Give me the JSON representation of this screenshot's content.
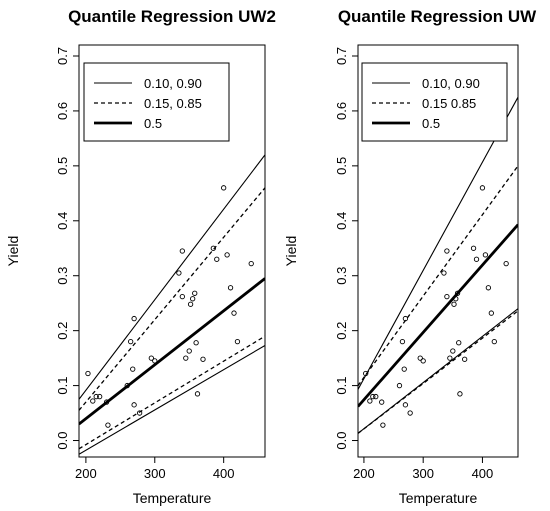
{
  "chart_data": [
    {
      "type": "scatter",
      "title": "Quantile Regression UW2",
      "xlabel": "Temperature",
      "ylabel": "Yield",
      "xlim": [
        190,
        460
      ],
      "ylim": [
        -0.03,
        0.72
      ],
      "xticks": [
        200,
        300,
        400
      ],
      "yticks": [
        0.0,
        0.1,
        0.2,
        0.3,
        0.4,
        0.5,
        0.6,
        0.7
      ],
      "legend_position": "top-left",
      "points": [
        [
          203,
          0.122
        ],
        [
          210,
          0.072
        ],
        [
          215,
          0.08
        ],
        [
          220,
          0.08
        ],
        [
          230,
          0.07
        ],
        [
          232,
          0.028
        ],
        [
          260,
          0.1
        ],
        [
          265,
          0.18
        ],
        [
          270,
          0.222
        ],
        [
          268,
          0.13
        ],
        [
          270,
          0.065
        ],
        [
          278,
          0.05
        ],
        [
          295,
          0.15
        ],
        [
          300,
          0.145
        ],
        [
          335,
          0.305
        ],
        [
          340,
          0.345
        ],
        [
          340,
          0.262
        ],
        [
          345,
          0.15
        ],
        [
          350,
          0.163
        ],
        [
          352,
          0.248
        ],
        [
          355,
          0.258
        ],
        [
          358,
          0.268
        ],
        [
          360,
          0.178
        ],
        [
          362,
          0.085
        ],
        [
          370,
          0.148
        ],
        [
          385,
          0.35
        ],
        [
          390,
          0.33
        ],
        [
          400,
          0.46
        ],
        [
          405,
          0.338
        ],
        [
          410,
          0.278
        ],
        [
          415,
          0.232
        ],
        [
          420,
          0.18
        ],
        [
          440,
          0.322
        ]
      ],
      "series": [
        {
          "name": "0.10, 0.90",
          "style": "thin-solid",
          "lines": [
            {
              "x": [
                190,
                460
              ],
              "y": [
                0.075,
                0.52
              ]
            },
            {
              "x": [
                190,
                460
              ],
              "y": [
                -0.025,
                0.173
              ]
            }
          ]
        },
        {
          "name": "0.15, 0.85",
          "style": "dashed",
          "lines": [
            {
              "x": [
                190,
                460
              ],
              "y": [
                0.055,
                0.46
              ]
            },
            {
              "x": [
                190,
                460
              ],
              "y": [
                -0.015,
                0.19
              ]
            }
          ]
        },
        {
          "name": "0.5",
          "style": "thick-solid",
          "lines": [
            {
              "x": [
                190,
                460
              ],
              "y": [
                0.03,
                0.295
              ]
            }
          ]
        }
      ]
    },
    {
      "type": "scatter",
      "title": "Quantile Regression UW",
      "xlabel": "Temperature",
      "ylabel": "Yield",
      "xlim": [
        190,
        460
      ],
      "ylim": [
        -0.03,
        0.72
      ],
      "xticks": [
        200,
        300,
        400
      ],
      "yticks": [
        0.0,
        0.1,
        0.2,
        0.3,
        0.4,
        0.5,
        0.6,
        0.7
      ],
      "legend_position": "top-left",
      "points": [
        [
          203,
          0.122
        ],
        [
          210,
          0.072
        ],
        [
          215,
          0.08
        ],
        [
          220,
          0.08
        ],
        [
          230,
          0.07
        ],
        [
          232,
          0.028
        ],
        [
          260,
          0.1
        ],
        [
          265,
          0.18
        ],
        [
          270,
          0.222
        ],
        [
          268,
          0.13
        ],
        [
          270,
          0.065
        ],
        [
          278,
          0.05
        ],
        [
          295,
          0.15
        ],
        [
          300,
          0.145
        ],
        [
          335,
          0.305
        ],
        [
          340,
          0.345
        ],
        [
          340,
          0.262
        ],
        [
          345,
          0.15
        ],
        [
          350,
          0.163
        ],
        [
          352,
          0.248
        ],
        [
          355,
          0.258
        ],
        [
          358,
          0.268
        ],
        [
          360,
          0.178
        ],
        [
          362,
          0.085
        ],
        [
          370,
          0.148
        ],
        [
          385,
          0.35
        ],
        [
          390,
          0.33
        ],
        [
          400,
          0.46
        ],
        [
          405,
          0.338
        ],
        [
          410,
          0.278
        ],
        [
          415,
          0.232
        ],
        [
          420,
          0.18
        ],
        [
          440,
          0.322
        ]
      ],
      "series": [
        {
          "name": "0.10, 0.90",
          "style": "thin-solid",
          "lines": [
            {
              "x": [
                190,
                460
              ],
              "y": [
                0.093,
                0.625
              ]
            },
            {
              "x": [
                190,
                460
              ],
              "y": [
                0.013,
                0.24
              ]
            }
          ]
        },
        {
          "name": "0.15 0.85",
          "style": "dashed",
          "lines": [
            {
              "x": [
                190,
                460
              ],
              "y": [
                0.1,
                0.5
              ]
            },
            {
              "x": [
                190,
                460
              ],
              "y": [
                0.013,
                0.236
              ]
            }
          ]
        },
        {
          "name": "0.5",
          "style": "thick-solid",
          "lines": [
            {
              "x": [
                190,
                460
              ],
              "y": [
                0.062,
                0.393
              ]
            }
          ]
        }
      ]
    }
  ]
}
